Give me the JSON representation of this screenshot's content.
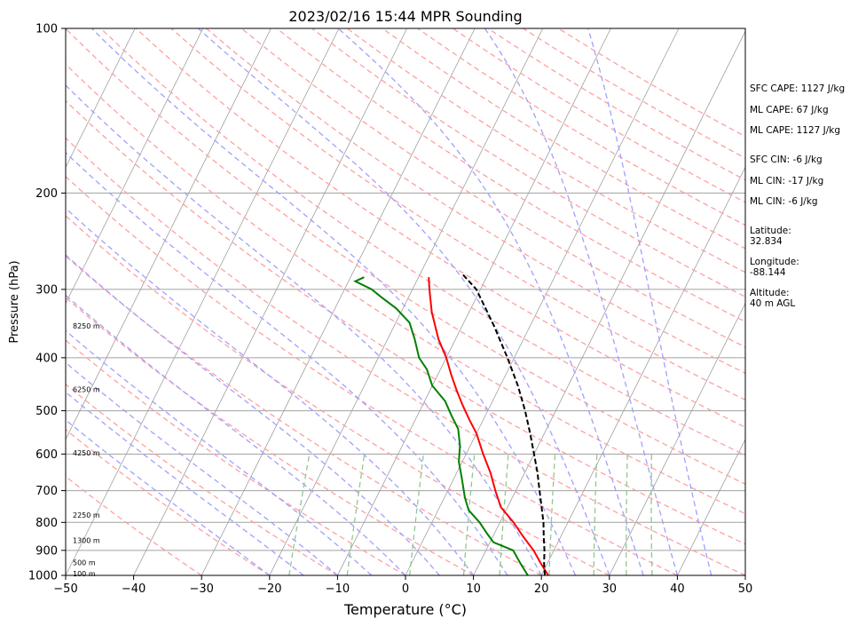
{
  "chart_data": {
    "type": "line",
    "title": "2023/02/16 15:44 MPR Sounding",
    "xlabel": "Temperature (°C)",
    "ylabel": "Pressure (hPa)",
    "xlim": [
      -50,
      50
    ],
    "ylim": [
      1000,
      100
    ],
    "y_scale": "log",
    "grid": true,
    "x_ticks": [
      "−50",
      "−40",
      "−30",
      "−20",
      "−10",
      "0",
      "10",
      "20",
      "30",
      "40",
      "50"
    ],
    "y_ticks": [
      {
        "p": 100,
        "label": "100"
      },
      {
        "p": 200,
        "label": "200"
      },
      {
        "p": 300,
        "label": "300"
      },
      {
        "p": 400,
        "label": "400"
      },
      {
        "p": 500,
        "label": "500"
      },
      {
        "p": 600,
        "label": "600"
      },
      {
        "p": 700,
        "label": "700"
      },
      {
        "p": 800,
        "label": "800"
      },
      {
        "p": 900,
        "label": "900"
      },
      {
        "p": 1000,
        "label": "1000"
      }
    ],
    "height_labels": [
      {
        "p": 350,
        "label": "8250 m"
      },
      {
        "p": 457,
        "label": "6250 m"
      },
      {
        "p": 597,
        "label": "4250 m"
      },
      {
        "p": 775,
        "label": "2250 m"
      },
      {
        "p": 863,
        "label": "1300 m"
      },
      {
        "p": 948,
        "label": "500 m"
      },
      {
        "p": 992,
        "label": "100 m"
      }
    ],
    "series": [
      {
        "color": "#ff0000",
        "points": [
          [
            21,
            1000
          ],
          [
            19,
            950
          ],
          [
            17,
            900
          ],
          [
            14.5,
            850
          ],
          [
            12,
            800
          ],
          [
            9,
            750
          ],
          [
            7,
            700
          ],
          [
            5,
            650
          ],
          [
            2.5,
            600
          ],
          [
            0,
            550
          ],
          [
            -2,
            520
          ],
          [
            -4,
            490
          ],
          [
            -6,
            460
          ],
          [
            -8,
            430
          ],
          [
            -10,
            400
          ],
          [
            -12.5,
            370
          ],
          [
            -15.5,
            330
          ],
          [
            -17.5,
            300
          ],
          [
            -18.5,
            285
          ]
        ]
      },
      {
        "color": "#008000",
        "points": [
          [
            18,
            1000
          ],
          [
            16,
            950
          ],
          [
            14,
            900
          ],
          [
            10.5,
            870
          ],
          [
            9,
            840
          ],
          [
            7,
            800
          ],
          [
            4.5,
            760
          ],
          [
            3,
            720
          ],
          [
            1,
            660
          ],
          [
            -0.5,
            620
          ],
          [
            -1.5,
            580
          ],
          [
            -3,
            540
          ],
          [
            -5,
            510
          ],
          [
            -7,
            480
          ],
          [
            -10,
            450
          ],
          [
            -12,
            420
          ],
          [
            -14,
            400
          ],
          [
            -16,
            370
          ],
          [
            -18,
            345
          ],
          [
            -21,
            325
          ],
          [
            -24,
            310
          ],
          [
            -26,
            300
          ],
          [
            -29,
            290
          ],
          [
            -28,
            285
          ]
        ]
      },
      {
        "color": "#000000",
        "dashed": true,
        "points": [
          [
            20.5,
            1000
          ],
          [
            19.5,
            950
          ],
          [
            18.6,
            900
          ],
          [
            17.5,
            850
          ],
          [
            16.4,
            800
          ],
          [
            15,
            750
          ],
          [
            13.5,
            700
          ],
          [
            11.9,
            650
          ],
          [
            10,
            600
          ],
          [
            7.9,
            550
          ],
          [
            5.5,
            500
          ],
          [
            2.6,
            450
          ],
          [
            -1,
            400
          ],
          [
            -5.3,
            350
          ],
          [
            -10.6,
            300
          ],
          [
            -14,
            280
          ]
        ]
      }
    ],
    "reference_line_colors": {
      "isotherm": "#a0a0a0",
      "dry_adiabat": "#ffa0a0",
      "moist_adiabat": "#a0a0ff",
      "mixing_ratio": "#90c890",
      "isobar": "#a0a0a0"
    }
  },
  "side_panel": {
    "sfc_cape": "SFC CAPE: 1127 J/kg",
    "ml_cape_1": "ML CAPE: 67 J/kg",
    "ml_cape_2": "ML CAPE: 1127 J/kg",
    "sfc_cin": "SFC CIN: -6 J/kg",
    "ml_cin_1": "ML CIN: -17 J/kg",
    "ml_cin_2": "ML CIN: -6 J/kg",
    "latitude_label": "Latitude:",
    "latitude_value": "32.834",
    "longitude_label": "Longitude:",
    "longitude_value": "-88.144",
    "altitude_label": "Altitude:",
    "altitude_value": "40 m AGL"
  }
}
